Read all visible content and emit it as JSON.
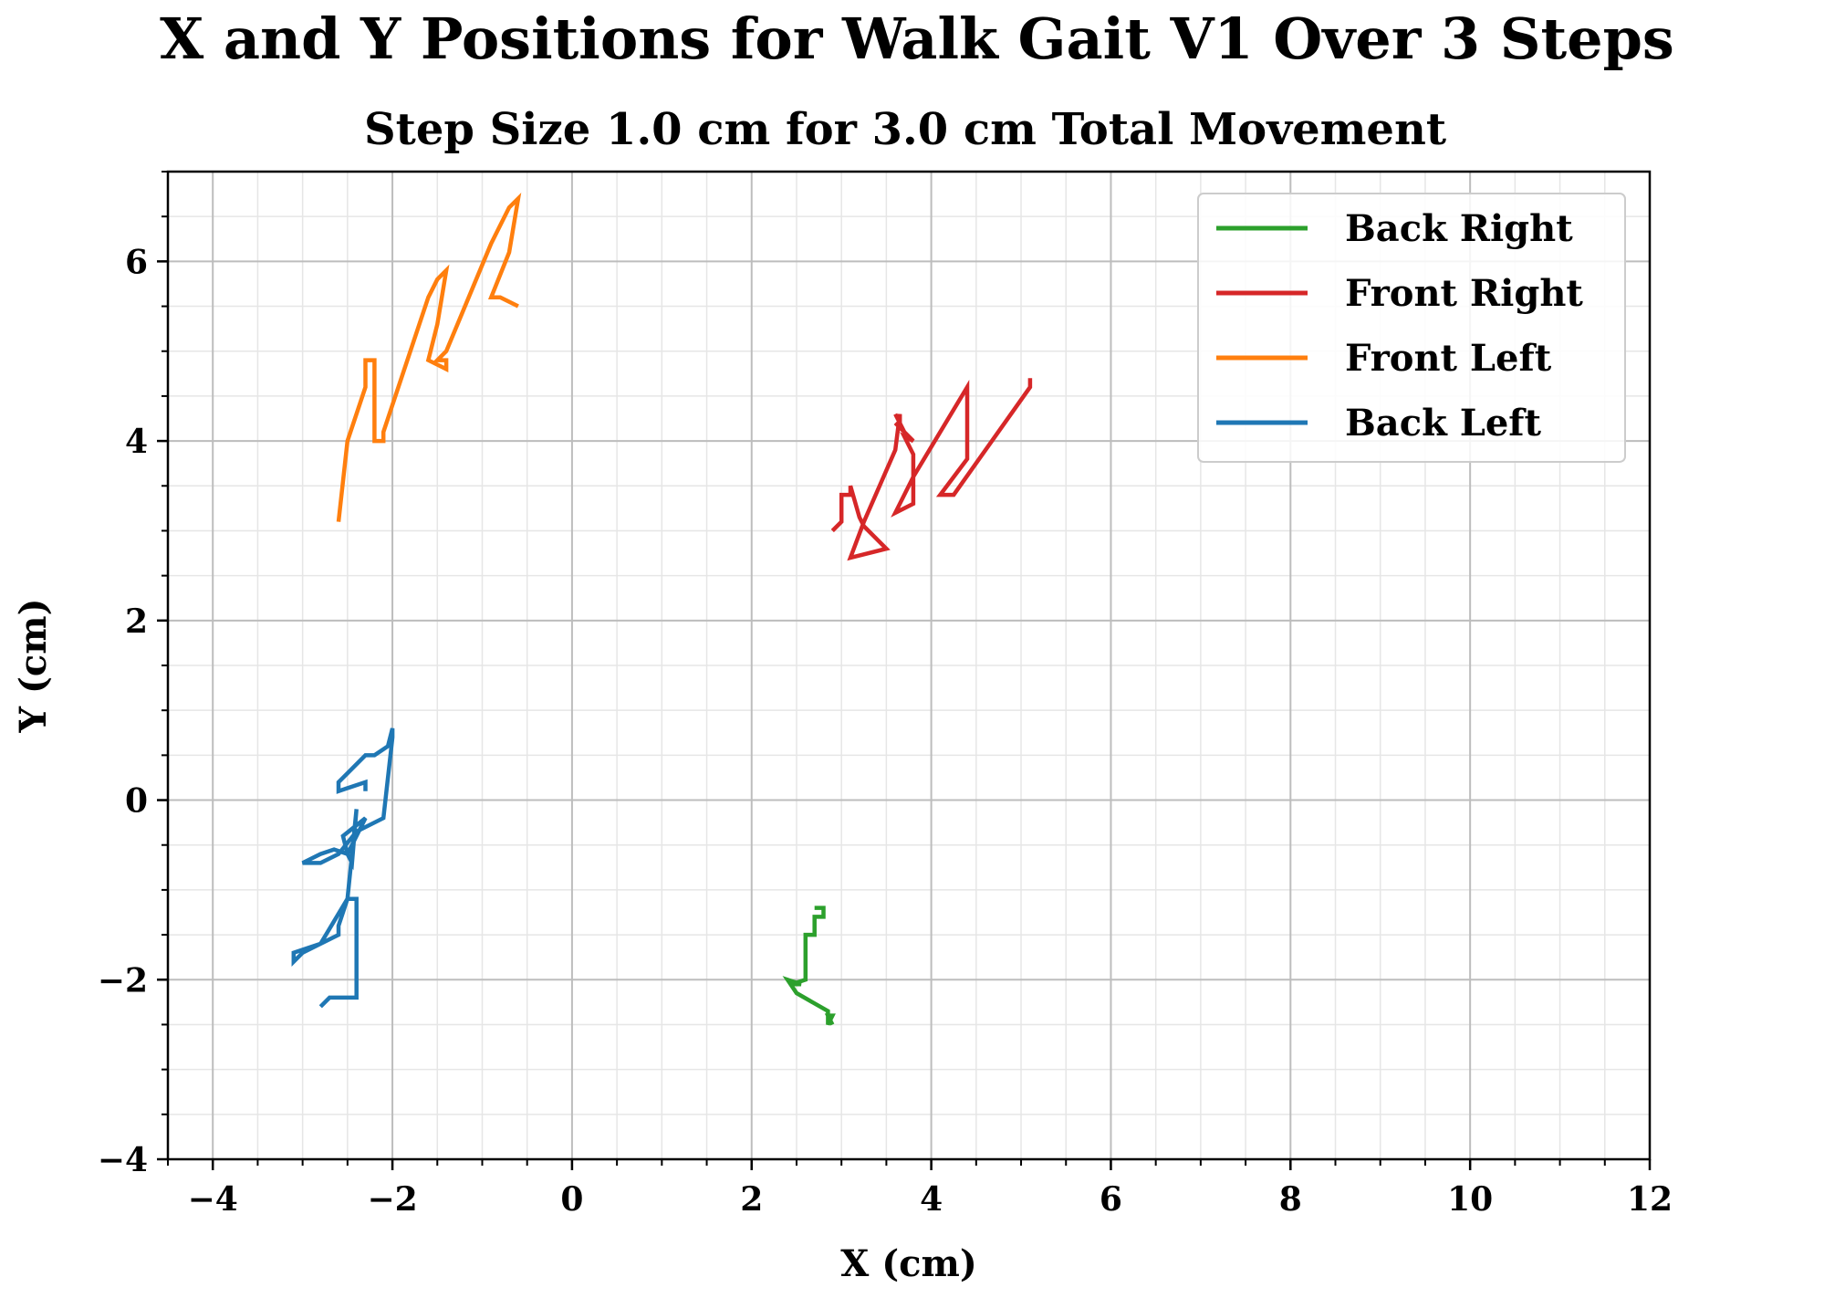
{
  "chart_data": {
    "type": "line",
    "title": "X and Y Positions for Walk Gait V1 Over 3 Steps",
    "subtitle": "Step Size 1.0 cm for 3.0 cm Total Movement",
    "xlabel": "X (cm)",
    "ylabel": "Y (cm)",
    "xlim": [
      -4.5,
      12
    ],
    "ylim": [
      -4,
      7
    ],
    "xticks": [
      -4,
      -2,
      0,
      2,
      4,
      6,
      8,
      10,
      12
    ],
    "xtick_labels": [
      "−4",
      "−2",
      "0",
      "2",
      "4",
      "6",
      "8",
      "10",
      "12"
    ],
    "yticks": [
      -4,
      -2,
      0,
      2,
      4,
      6
    ],
    "ytick_labels": [
      "−4",
      "−2",
      "0",
      "2",
      "4",
      "6"
    ],
    "grid": true,
    "minor_grid": true,
    "legend_position": "top-right",
    "series": [
      {
        "name": "Back Right",
        "color": "#2ca02c",
        "points": [
          [
            2.9,
            -2.5
          ],
          [
            2.85,
            -2.4
          ],
          [
            2.9,
            -2.4
          ],
          [
            2.85,
            -2.5
          ],
          [
            2.85,
            -2.35
          ],
          [
            2.5,
            -2.15
          ],
          [
            2.4,
            -2.0
          ],
          [
            2.55,
            -2.05
          ],
          [
            2.45,
            -2.05
          ],
          [
            2.6,
            -2.0
          ],
          [
            2.6,
            -1.5
          ],
          [
            2.7,
            -1.5
          ],
          [
            2.7,
            -1.3
          ],
          [
            2.8,
            -1.3
          ],
          [
            2.8,
            -1.2
          ],
          [
            2.7,
            -1.2
          ]
        ]
      },
      {
        "name": "Front Right",
        "color": "#d62728",
        "points": [
          [
            2.9,
            3.0
          ],
          [
            3.0,
            3.1
          ],
          [
            3.0,
            3.4
          ],
          [
            3.1,
            3.4
          ],
          [
            3.1,
            3.5
          ],
          [
            3.2,
            3.15
          ],
          [
            3.25,
            3.05
          ],
          [
            3.5,
            2.8
          ],
          [
            3.1,
            2.7
          ],
          [
            3.25,
            3.1
          ],
          [
            3.6,
            3.9
          ],
          [
            3.65,
            4.3
          ],
          [
            3.65,
            4.2
          ],
          [
            3.6,
            4.3
          ],
          [
            3.7,
            4.1
          ],
          [
            3.6,
            4.2
          ],
          [
            3.8,
            4.0
          ],
          [
            3.7,
            4.05
          ],
          [
            3.8,
            3.85
          ],
          [
            3.8,
            3.3
          ],
          [
            3.6,
            3.2
          ],
          [
            3.8,
            3.6
          ],
          [
            4.4,
            4.6
          ],
          [
            4.4,
            3.8
          ],
          [
            4.1,
            3.4
          ],
          [
            4.25,
            3.4
          ],
          [
            5.1,
            4.6
          ],
          [
            5.1,
            4.7
          ]
        ]
      },
      {
        "name": "Front Left",
        "color": "#ff7f0e",
        "points": [
          [
            -2.6,
            3.1
          ],
          [
            -2.5,
            4.0
          ],
          [
            -2.3,
            4.6
          ],
          [
            -2.3,
            4.9
          ],
          [
            -2.2,
            4.9
          ],
          [
            -2.2,
            4.0
          ],
          [
            -2.1,
            4.0
          ],
          [
            -2.1,
            4.1
          ],
          [
            -1.6,
            5.6
          ],
          [
            -1.5,
            5.8
          ],
          [
            -1.4,
            5.9
          ],
          [
            -1.5,
            5.3
          ],
          [
            -1.6,
            4.9
          ],
          [
            -1.4,
            4.8
          ],
          [
            -1.4,
            4.9
          ],
          [
            -1.5,
            4.9
          ],
          [
            -1.4,
            5.0
          ],
          [
            -0.9,
            6.2
          ],
          [
            -0.7,
            6.6
          ],
          [
            -0.6,
            6.7
          ],
          [
            -0.7,
            6.1
          ],
          [
            -0.9,
            5.6
          ],
          [
            -0.8,
            5.6
          ],
          [
            -0.6,
            5.5
          ]
        ]
      },
      {
        "name": "Back Left",
        "color": "#1f77b4",
        "points": [
          [
            -2.8,
            -2.3
          ],
          [
            -2.7,
            -2.2
          ],
          [
            -2.4,
            -2.2
          ],
          [
            -2.4,
            -1.1
          ],
          [
            -2.5,
            -1.1
          ],
          [
            -2.6,
            -1.4
          ],
          [
            -2.6,
            -1.5
          ],
          [
            -2.8,
            -1.6
          ],
          [
            -3.1,
            -1.7
          ],
          [
            -3.1,
            -1.8
          ],
          [
            -3.0,
            -1.7
          ],
          [
            -2.8,
            -1.6
          ],
          [
            -2.5,
            -1.1
          ],
          [
            -2.45,
            -0.6
          ],
          [
            -2.4,
            -0.1
          ],
          [
            -2.45,
            -0.7
          ],
          [
            -2.5,
            -0.6
          ],
          [
            -2.55,
            -0.4
          ],
          [
            -2.3,
            -0.2
          ],
          [
            -2.5,
            -0.6
          ],
          [
            -2.65,
            -0.55
          ],
          [
            -2.8,
            -0.6
          ],
          [
            -3.0,
            -0.7
          ],
          [
            -2.8,
            -0.7
          ],
          [
            -2.6,
            -0.6
          ],
          [
            -2.4,
            -0.35
          ],
          [
            -2.1,
            -0.2
          ],
          [
            -2.0,
            0.7
          ],
          [
            -2.0,
            0.8
          ],
          [
            -2.05,
            0.6
          ],
          [
            -2.2,
            0.5
          ],
          [
            -2.3,
            0.5
          ],
          [
            -2.6,
            0.2
          ],
          [
            -2.6,
            0.1
          ],
          [
            -2.3,
            0.2
          ],
          [
            -2.3,
            0.1
          ]
        ]
      }
    ]
  }
}
